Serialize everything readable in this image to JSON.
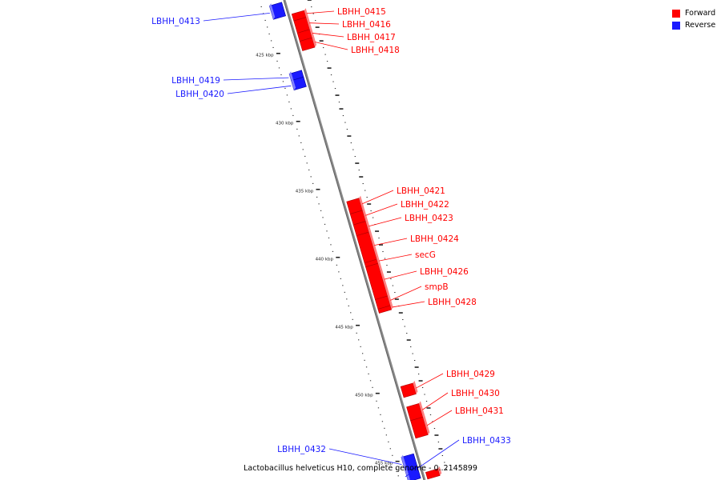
{
  "colors": {
    "forward": "#ff0000",
    "reverse": "#1a1aff",
    "backbone": "#8a8a8a"
  },
  "legend": [
    {
      "label": "Forward",
      "strand": "forward"
    },
    {
      "label": "Reverse",
      "strand": "reverse"
    }
  ],
  "caption": "Lactobacillus helveticus H10, complete genome - 0..2145899",
  "axis": {
    "start_kbp": 421.5,
    "end_kbp": 456.8
  },
  "ticks": [
    {
      "kbp": 425,
      "label": "425 kbp"
    },
    {
      "kbp": 430,
      "label": "430 kbp"
    },
    {
      "kbp": 435,
      "label": "435 kbp"
    },
    {
      "kbp": 440,
      "label": "440 kbp"
    },
    {
      "kbp": 445,
      "label": "445 kbp"
    },
    {
      "kbp": 450,
      "label": "450 kbp"
    },
    {
      "kbp": 455,
      "label": "455 kbp"
    }
  ],
  "genes": [
    {
      "name": "LBHH_0413",
      "strand": "reverse",
      "start": 421.6,
      "end": 422.6
    },
    {
      "name": "LBHH_0415",
      "strand": "forward",
      "start": 422.6,
      "end": 423.1
    },
    {
      "name": "LBHH_0416",
      "strand": "forward",
      "start": 423.1,
      "end": 424.0
    },
    {
      "name": "LBHH_0417",
      "strand": "forward",
      "start": 424.0,
      "end": 424.6
    },
    {
      "name": "LBHH_0418",
      "strand": "forward",
      "start": 424.6,
      "end": 425.3
    },
    {
      "name": "LBHH_0419",
      "strand": "reverse",
      "start": 426.6,
      "end": 427.1
    },
    {
      "name": "LBHH_0420",
      "strand": "reverse",
      "start": 427.1,
      "end": 427.8
    },
    {
      "name": "LBHH_0421",
      "strand": "forward",
      "start": 436.4,
      "end": 437.3
    },
    {
      "name": "LBHH_0422",
      "strand": "forward",
      "start": 437.3,
      "end": 438.1
    },
    {
      "name": "LBHH_0423",
      "strand": "forward",
      "start": 438.1,
      "end": 438.9
    },
    {
      "name": "LBHH_0424",
      "strand": "forward",
      "start": 438.9,
      "end": 440.9
    },
    {
      "name": "secG",
      "strand": "forward",
      "start": 440.9,
      "end": 441.2
    },
    {
      "name": "LBHH_0426",
      "strand": "forward",
      "start": 441.2,
      "end": 443.6
    },
    {
      "name": "smpB",
      "strand": "forward",
      "start": 443.6,
      "end": 444.3
    },
    {
      "name": "LBHH_0428",
      "strand": "forward",
      "start": 444.3,
      "end": 444.6
    },
    {
      "name": "LBHH_0429",
      "strand": "forward",
      "start": 450.0,
      "end": 450.8
    },
    {
      "name": "LBHH_0430",
      "strand": "forward",
      "start": 451.5,
      "end": 452.5
    },
    {
      "name": "LBHH_0431",
      "strand": "forward",
      "start": 452.5,
      "end": 453.8
    },
    {
      "name": "LBHH_0432",
      "strand": "reverse",
      "start": 454.8,
      "end": 455.8
    },
    {
      "name": "LBHH_0433",
      "strand": "reverse",
      "start": 455.8,
      "end": 456.6
    },
    {
      "name": "",
      "strand": "forward",
      "start": 456.3,
      "end": 456.8
    }
  ]
}
